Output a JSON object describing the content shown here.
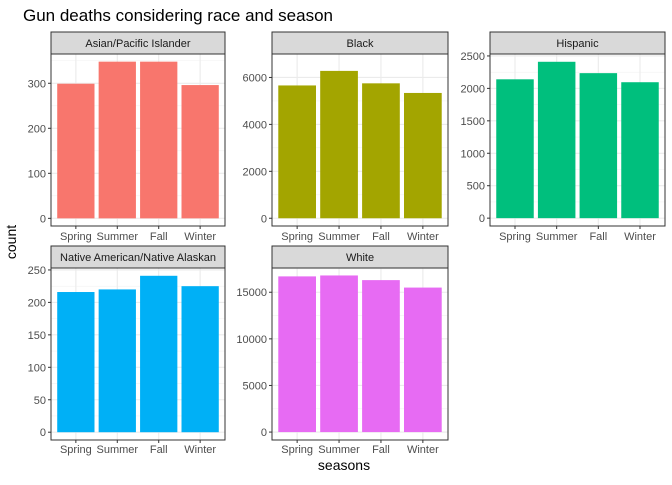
{
  "chart_data": {
    "type": "bar",
    "title": "Gun deaths considering race and season",
    "xlabel": "seasons",
    "ylabel": "count",
    "categories": [
      "Spring",
      "Summer",
      "Fall",
      "Winter"
    ],
    "grid": true,
    "facets": [
      {
        "name": "Asian/Pacific Islander",
        "color": "#F8766D",
        "values": [
          299,
          348,
          348,
          296
        ],
        "ylim": [
          -17,
          365
        ],
        "yticks": [
          0,
          100,
          200,
          300
        ]
      },
      {
        "name": "Black",
        "color": "#A3A500",
        "values": [
          5660,
          6280,
          5750,
          5340
        ],
        "ylim": [
          -330,
          7000
        ],
        "yticks": [
          0,
          2000,
          4000,
          6000
        ]
      },
      {
        "name": "Hispanic",
        "color": "#00BF7D",
        "values": [
          2140,
          2410,
          2235,
          2095
        ],
        "ylim": [
          -121,
          2530
        ],
        "yticks": [
          0,
          500,
          1000,
          1500,
          2000,
          2500
        ]
      },
      {
        "name": "Native American/Native Alaskan",
        "color": "#00B0F6",
        "values": [
          216,
          220,
          241,
          225
        ],
        "ylim": [
          -12,
          253
        ],
        "yticks": [
          0,
          50,
          100,
          150,
          200,
          250
        ]
      },
      {
        "name": "White",
        "color": "#E76BF3",
        "values": [
          16700,
          16800,
          16300,
          15500
        ],
        "ylim": [
          -850,
          17600
        ],
        "yticks": [
          0,
          5000,
          10000,
          15000
        ]
      }
    ]
  }
}
